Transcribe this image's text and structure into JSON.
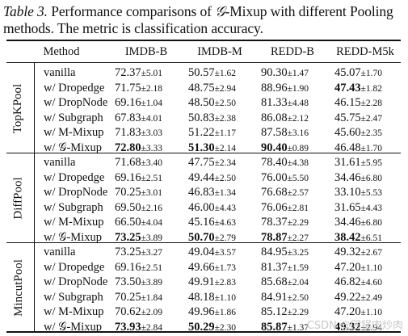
{
  "caption": {
    "label": "Table 3.",
    "text_before": " Performance comparisons of ",
    "symbol": "𝒢",
    "text_after": "-Mixup with different Pooling methods. The metric is classification accuracy."
  },
  "headers": [
    "Method",
    "IMDB-B",
    "IMDB-M",
    "REDD-B",
    "REDD-M5k"
  ],
  "groups": [
    {
      "name": "TopKPool",
      "rows": [
        {
          "method": "vanilla",
          "cells": [
            [
              "72.37",
              "±5.01",
              false
            ],
            [
              "50.57",
              "±1.62",
              false
            ],
            [
              "90.30",
              "±1.47",
              false
            ],
            [
              "45.07",
              "±1.70",
              false
            ]
          ]
        },
        {
          "method": "w/ Dropedge",
          "cells": [
            [
              "71.75",
              "±2.18",
              false
            ],
            [
              "48.75",
              "±2.94",
              false
            ],
            [
              "88.96",
              "±1.90",
              false
            ],
            [
              "47.43",
              "±1.82",
              true
            ]
          ]
        },
        {
          "method": "w/ DropNode",
          "cells": [
            [
              "69.16",
              "±1.04",
              false
            ],
            [
              "48.50",
              "±2.50",
              false
            ],
            [
              "81.33",
              "±4.48",
              false
            ],
            [
              "46.15",
              "±2.28",
              false
            ]
          ]
        },
        {
          "method": "w/ Subgraph",
          "cells": [
            [
              "67.83",
              "±4.01",
              false
            ],
            [
              "50.83",
              "±2.38",
              false
            ],
            [
              "86.08",
              "±2.12",
              false
            ],
            [
              "45.75",
              "±2.47",
              false
            ]
          ]
        },
        {
          "method": "w/ M-Mixup",
          "cells": [
            [
              "71.83",
              "±3.03",
              false
            ],
            [
              "51.22",
              "±1.17",
              false
            ],
            [
              "87.58",
              "±3.16",
              false
            ],
            [
              "45.60",
              "±2.35",
              false
            ]
          ]
        },
        {
          "method": "w/ 𝒢-Mixup",
          "cells": [
            [
              "72.80",
              "±3.33",
              true
            ],
            [
              "51.30",
              "±2.14",
              true
            ],
            [
              "90.40",
              "±0.89",
              true
            ],
            [
              "46.48",
              "±1.70",
              false
            ]
          ]
        }
      ]
    },
    {
      "name": "DiffPool",
      "rows": [
        {
          "method": "vanilla",
          "cells": [
            [
              "71.68",
              "±3.40",
              false
            ],
            [
              "47.75",
              "±2.34",
              false
            ],
            [
              "78.40",
              "±4.38",
              false
            ],
            [
              "31.61",
              "±5.95",
              false
            ]
          ]
        },
        {
          "method": "w/ Dropedge",
          "cells": [
            [
              "69.16",
              "±2.51",
              false
            ],
            [
              "49.44",
              "±2.50",
              false
            ],
            [
              "76.00",
              "±5.50",
              false
            ],
            [
              "34.46",
              "±6.80",
              false
            ]
          ]
        },
        {
          "method": "w/ DropNode",
          "cells": [
            [
              "70.25",
              "±3.01",
              false
            ],
            [
              "46.83",
              "±1.34",
              false
            ],
            [
              "76.68",
              "±2.57",
              false
            ],
            [
              "33.10",
              "±5.53",
              false
            ]
          ]
        },
        {
          "method": "w/ Subgraph",
          "cells": [
            [
              "69.50",
              "±2.16",
              false
            ],
            [
              "46.00",
              "±4.43",
              false
            ],
            [
              "76.06",
              "±2.81",
              false
            ],
            [
              "31.65",
              "±4.43",
              false
            ]
          ]
        },
        {
          "method": "w/ M-Mixup",
          "cells": [
            [
              "66.50",
              "±4.04",
              false
            ],
            [
              "45.16",
              "±4.63",
              false
            ],
            [
              "78.37",
              "±2.29",
              false
            ],
            [
              "34.46",
              "±6.80",
              false
            ]
          ]
        },
        {
          "method": "w/ 𝒢-Mixup",
          "cells": [
            [
              "73.25",
              "±3.89",
              true
            ],
            [
              "50.70",
              "±2.79",
              true
            ],
            [
              "78.87",
              "±2.27",
              true
            ],
            [
              "38.42",
              "±6.51",
              true
            ]
          ]
        }
      ]
    },
    {
      "name": "MincutPool",
      "rows": [
        {
          "method": "vanilla",
          "cells": [
            [
              "73.25",
              "±3.27",
              false
            ],
            [
              "49.04",
              "±3.57",
              false
            ],
            [
              "84.95",
              "±3.25",
              false
            ],
            [
              "49.32",
              "±2.67",
              false
            ]
          ]
        },
        {
          "method": "w/ Dropedge",
          "cells": [
            [
              "69.16",
              "±2.51",
              false
            ],
            [
              "49.66",
              "±1.73",
              false
            ],
            [
              "81.37",
              "±1.59",
              false
            ],
            [
              "47.20",
              "±1.10",
              false
            ]
          ]
        },
        {
          "method": "w/ DropNode",
          "cells": [
            [
              "73.50",
              "±3.89",
              false
            ],
            [
              "49.91",
              "±2.83",
              false
            ],
            [
              "85.68",
              "±2.04",
              false
            ],
            [
              "46.82",
              "±4.60",
              false
            ]
          ]
        },
        {
          "method": "w/ Subgraph",
          "cells": [
            [
              "70.25",
              "±1.84",
              false
            ],
            [
              "48.18",
              "±1.10",
              false
            ],
            [
              "84.91",
              "±2.50",
              false
            ],
            [
              "49.22",
              "±2.49",
              false
            ]
          ]
        },
        {
          "method": "w/ M-Mixup",
          "cells": [
            [
              "70.62",
              "±2.09",
              false
            ],
            [
              "49.96",
              "±1.86",
              false
            ],
            [
              "85.12",
              "±2.29",
              false
            ],
            [
              "47.20",
              "±1.10",
              false
            ]
          ]
        },
        {
          "method": "w/ 𝒢-Mixup",
          "cells": [
            [
              "73.93",
              "±2.84",
              true
            ],
            [
              "50.29",
              "±2.30",
              true
            ],
            [
              "85.87",
              "±1.37",
              true
            ],
            [
              "49.32",
              "±2.94",
              true
            ]
          ]
        }
      ]
    }
  ],
  "watermark": "CSDN @回锅肉炒肉"
}
